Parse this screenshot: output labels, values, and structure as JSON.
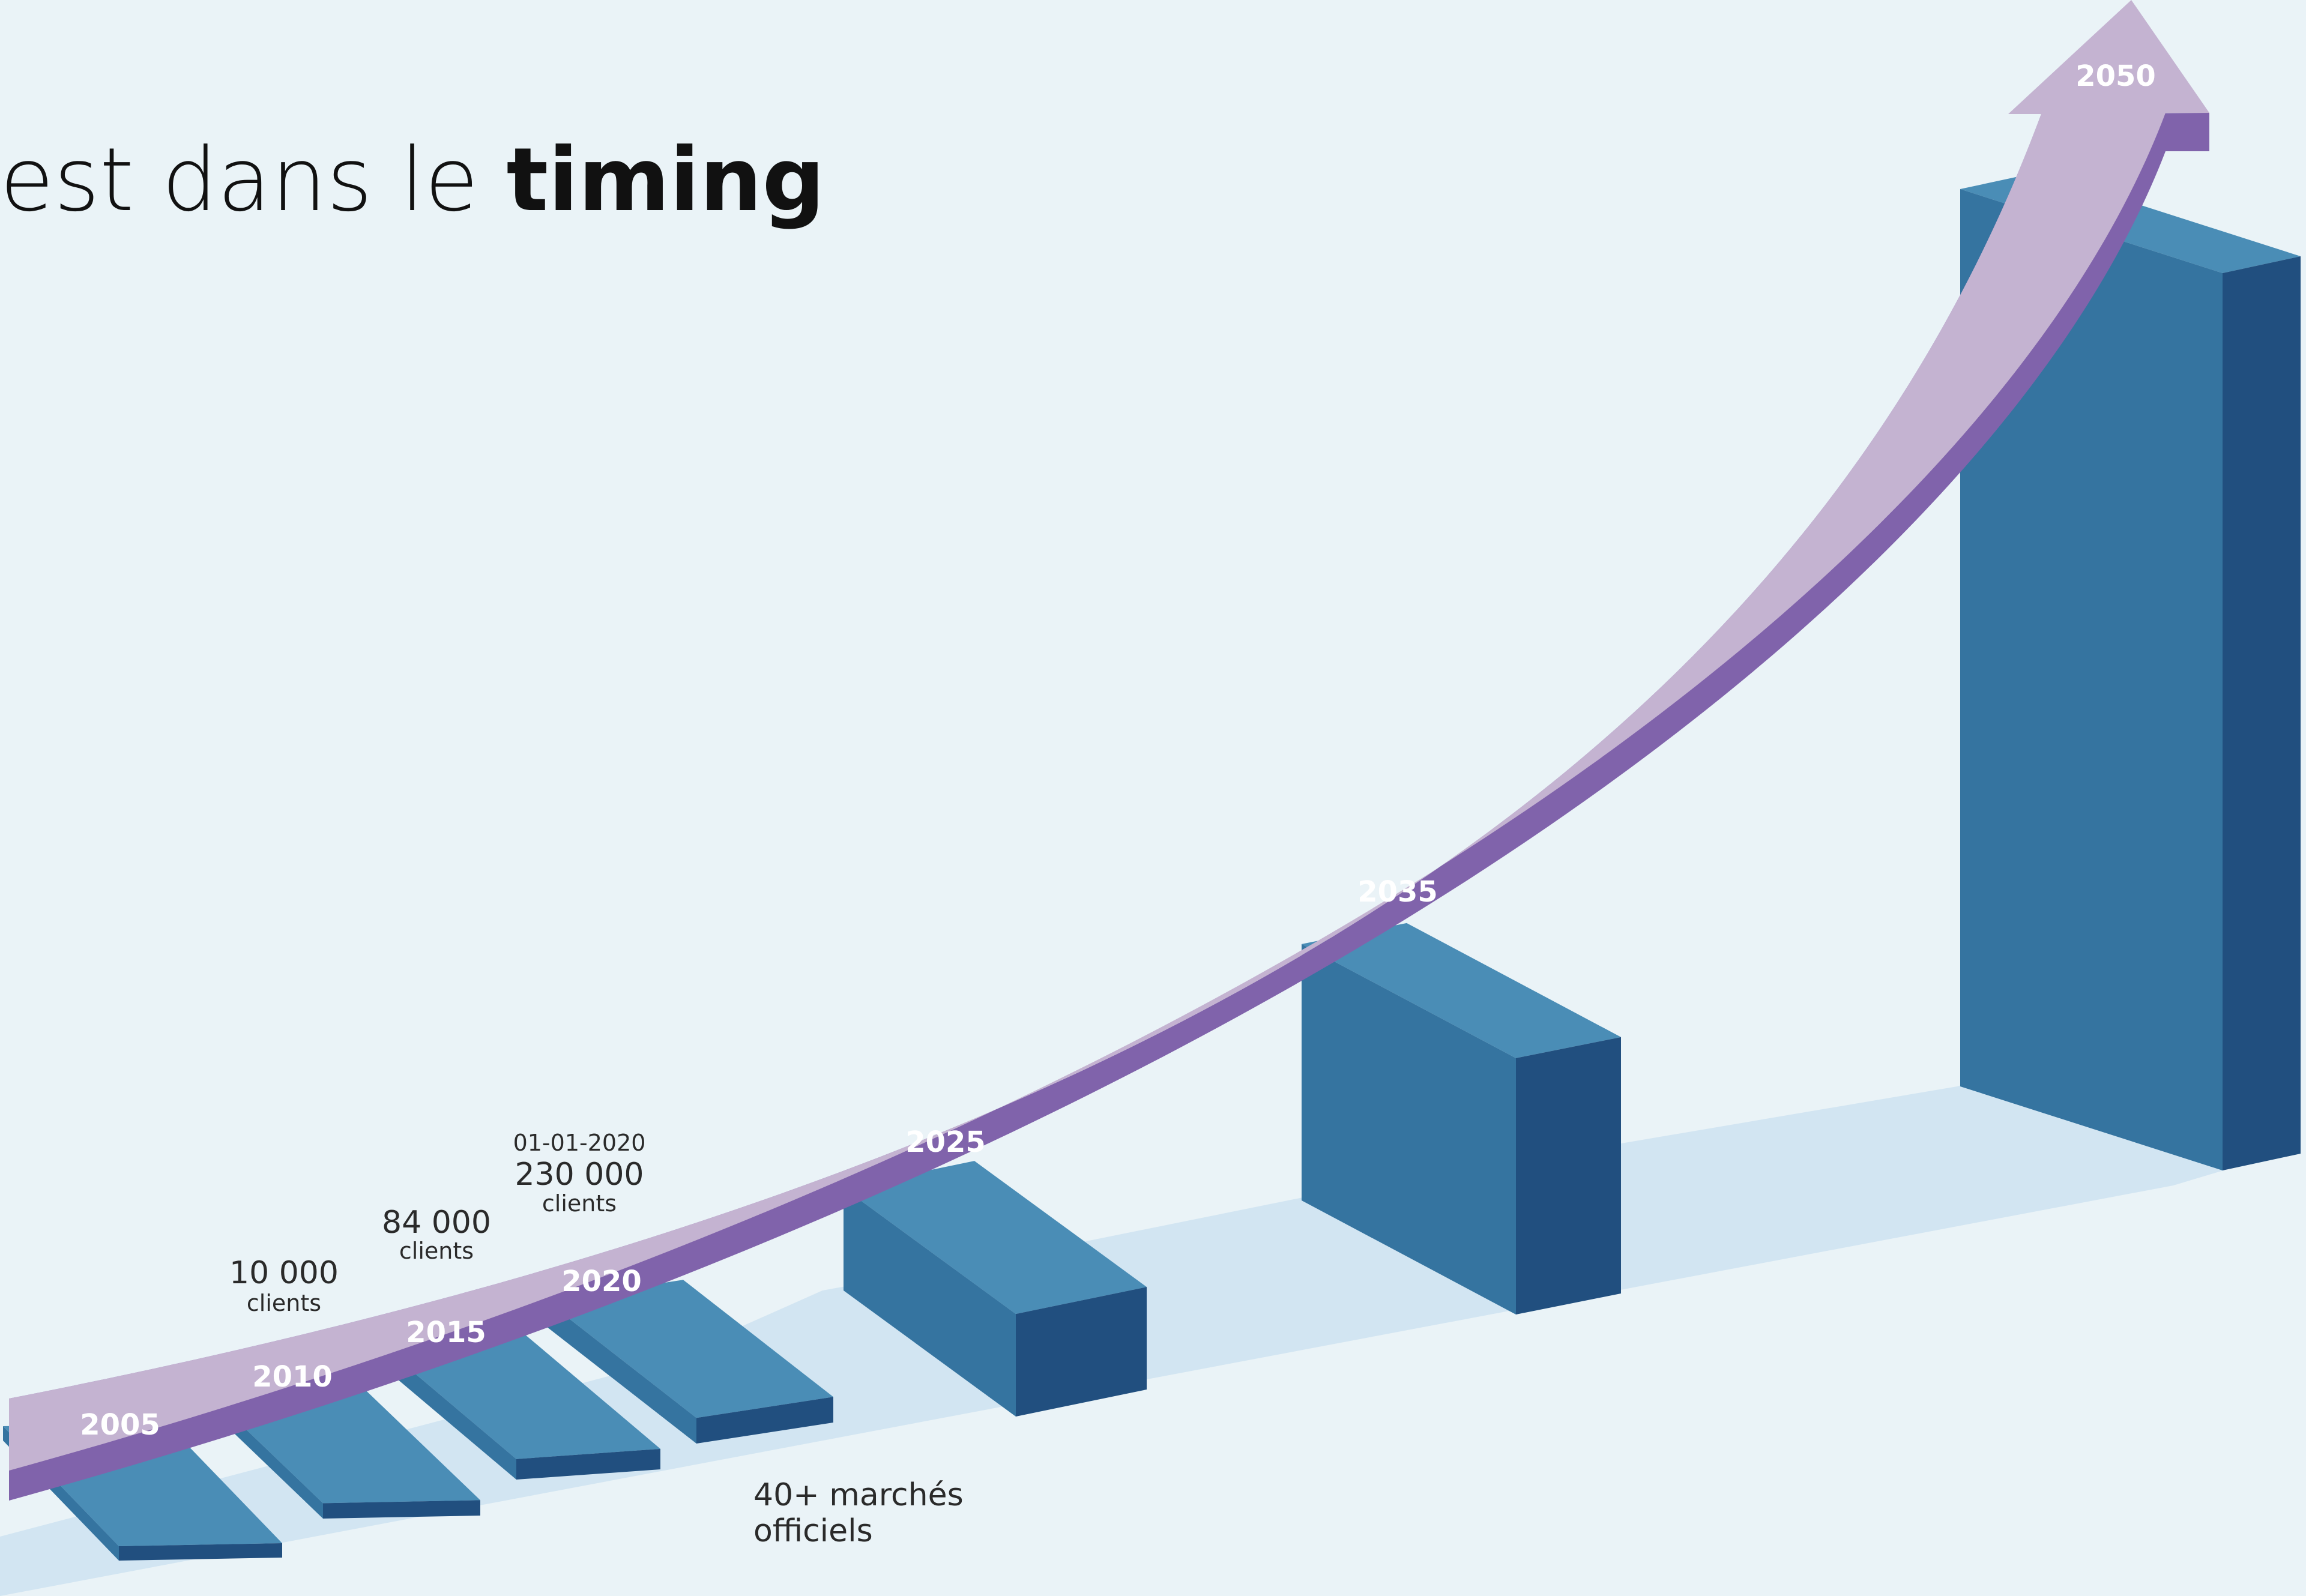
{
  "title": {
    "prefix": "est dans le ",
    "emphasis": "timing"
  },
  "colors": {
    "background": "#eaf3f7",
    "floor": "#d2e5f2",
    "bar_top": "#4a8db6",
    "bar_front": "#3574a0",
    "bar_side": "#214f7f",
    "arrow_face": "#c4b3d1",
    "arrow_edge": "#8063ab",
    "year_label": "#ffffff",
    "annotation": "#2a2a2a"
  },
  "chart_data": {
    "type": "bar",
    "style": "3d-isometric-with-growth-arrow",
    "title": "est dans le timing",
    "categories": [
      "2005",
      "2010",
      "2015",
      "2020",
      "2025",
      "2035",
      "2050"
    ],
    "series": [
      {
        "values": [
          0.5,
          0.6,
          0.8,
          1.0,
          4.0,
          10.0,
          35.0
        ]
      }
    ],
    "arrow": {
      "labels": [
        "2005",
        "2010",
        "2015",
        "2020",
        "2025",
        "2035",
        "2050"
      ]
    },
    "annotations": [
      {
        "value": "10 000",
        "unit": "clients",
        "year": "2010"
      },
      {
        "value": "84 000",
        "unit": "clients",
        "year": "2015"
      },
      {
        "date": "01-01-2020",
        "value": "230 000",
        "unit": "clients",
        "year": "2020"
      }
    ],
    "note": {
      "line1": "40+ marchés",
      "line2": "officiels"
    },
    "grid": false,
    "legend": "none"
  }
}
